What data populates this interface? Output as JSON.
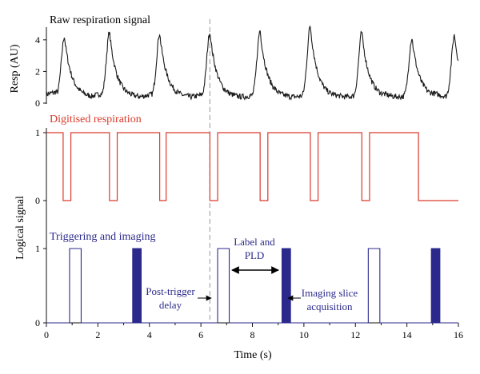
{
  "colors": {
    "raw": "#1a1a1a",
    "digitised": "#d93a2b",
    "trigger": "#2b2a8c",
    "axis": "#111111",
    "dashed": "#a9a9a9"
  },
  "chart_data": [
    {
      "type": "line",
      "id": "raw",
      "title": "Raw respiration signal",
      "ylabel": "Resp (AU)",
      "ylim": [
        0,
        4.8
      ],
      "yticks": [
        "0",
        "2",
        "4"
      ],
      "xlim": [
        0,
        16
      ],
      "peaks": [
        {
          "t": 0.7,
          "v": 4.2
        },
        {
          "t": 2.45,
          "v": 4.5
        },
        {
          "t": 4.4,
          "v": 4.4
        },
        {
          "t": 6.35,
          "v": 4.5
        },
        {
          "t": 8.3,
          "v": 4.6
        },
        {
          "t": 10.25,
          "v": 4.9
        },
        {
          "t": 12.25,
          "v": 4.5
        },
        {
          "t": 14.2,
          "v": 4.1
        },
        {
          "t": 15.85,
          "v": 4.3
        }
      ]
    },
    {
      "type": "line",
      "id": "digitised",
      "title": "Digitised respiration",
      "ylim": [
        0,
        1
      ],
      "yticks": [
        "0",
        "1"
      ],
      "xlim": [
        0,
        16
      ],
      "low_intervals": [
        [
          0.65,
          0.95
        ],
        [
          2.45,
          2.75
        ],
        [
          4.4,
          4.65
        ],
        [
          6.35,
          6.65
        ],
        [
          8.3,
          8.6
        ],
        [
          10.25,
          10.55
        ],
        [
          12.25,
          12.55
        ],
        [
          14.45,
          16.0
        ]
      ]
    },
    {
      "type": "line",
      "id": "trigger",
      "title": "Triggering and imaging",
      "ylabel": "Logical signal",
      "xlabel": "Time (s)",
      "ylim": [
        0,
        1
      ],
      "yticks": [
        "0",
        "1"
      ],
      "xlim": [
        0,
        16
      ],
      "xticks": [
        "0",
        "2",
        "4",
        "6",
        "8",
        "10",
        "12",
        "14",
        "16"
      ],
      "trigger_pulses": [
        [
          0.9,
          1.35
        ],
        [
          6.65,
          7.1
        ],
        [
          12.5,
          12.95
        ]
      ],
      "imaging_bursts": [
        [
          3.35,
          3.7
        ],
        [
          9.15,
          9.5
        ],
        [
          14.95,
          15.3
        ]
      ],
      "annotations": {
        "post_trigger_line1": "Post-trigger",
        "post_trigger_line2": "delay",
        "label_line1": "Label and",
        "label_line2": "PLD",
        "imaging_line1": "Imaging slice",
        "imaging_line2": "acquisition"
      },
      "trigger_marker_time": 6.35
    }
  ]
}
